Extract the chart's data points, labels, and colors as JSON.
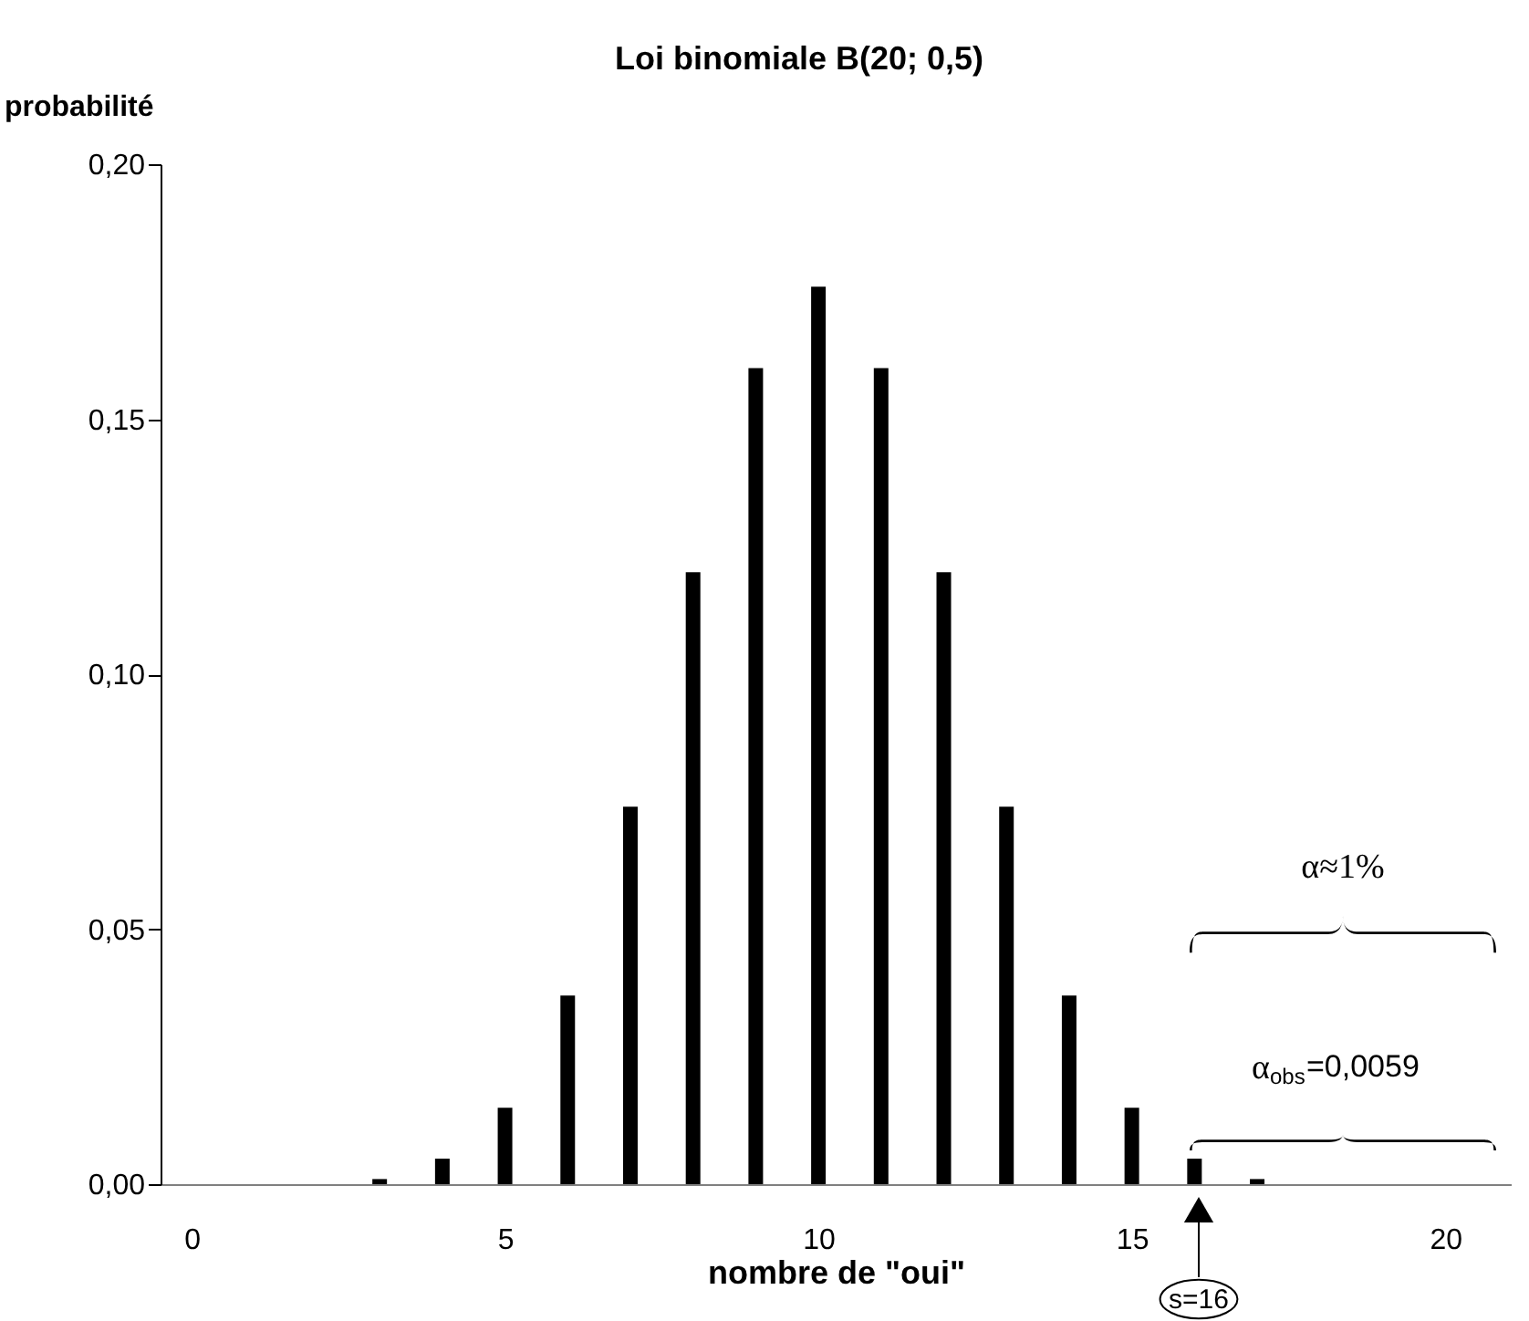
{
  "chart_data": {
    "type": "bar",
    "title": "Loi binomiale B(20; 0,5)",
    "xlabel": "nombre de \"oui\"",
    "ylabel": "probabilité",
    "x": [
      0,
      1,
      2,
      3,
      4,
      5,
      6,
      7,
      8,
      9,
      10,
      11,
      12,
      13,
      14,
      15,
      16,
      17,
      18,
      19,
      20
    ],
    "values": [
      0,
      0,
      0,
      0.001,
      0.005,
      0.015,
      0.037,
      0.074,
      0.12,
      0.16,
      0.176,
      0.16,
      0.12,
      0.074,
      0.037,
      0.015,
      0.005,
      0.001,
      0,
      0,
      0
    ],
    "color": "#000000",
    "xlim": [
      -0.35,
      20.9
    ],
    "xticks": [
      0,
      5,
      10,
      15,
      20
    ],
    "ylim": [
      0,
      0.2
    ],
    "yticks": [
      {
        "value": 0,
        "label": "0,00"
      },
      {
        "value": 0.05,
        "label": "0,05"
      },
      {
        "value": 0.1,
        "label": "0,10"
      },
      {
        "value": 0.15,
        "label": "0,15"
      },
      {
        "value": 0.2,
        "label": "0,20"
      }
    ],
    "grid": false,
    "annotations": [
      "s=16",
      "α≈1%",
      "α$_{obs}$=0,0059"
    ]
  }
}
